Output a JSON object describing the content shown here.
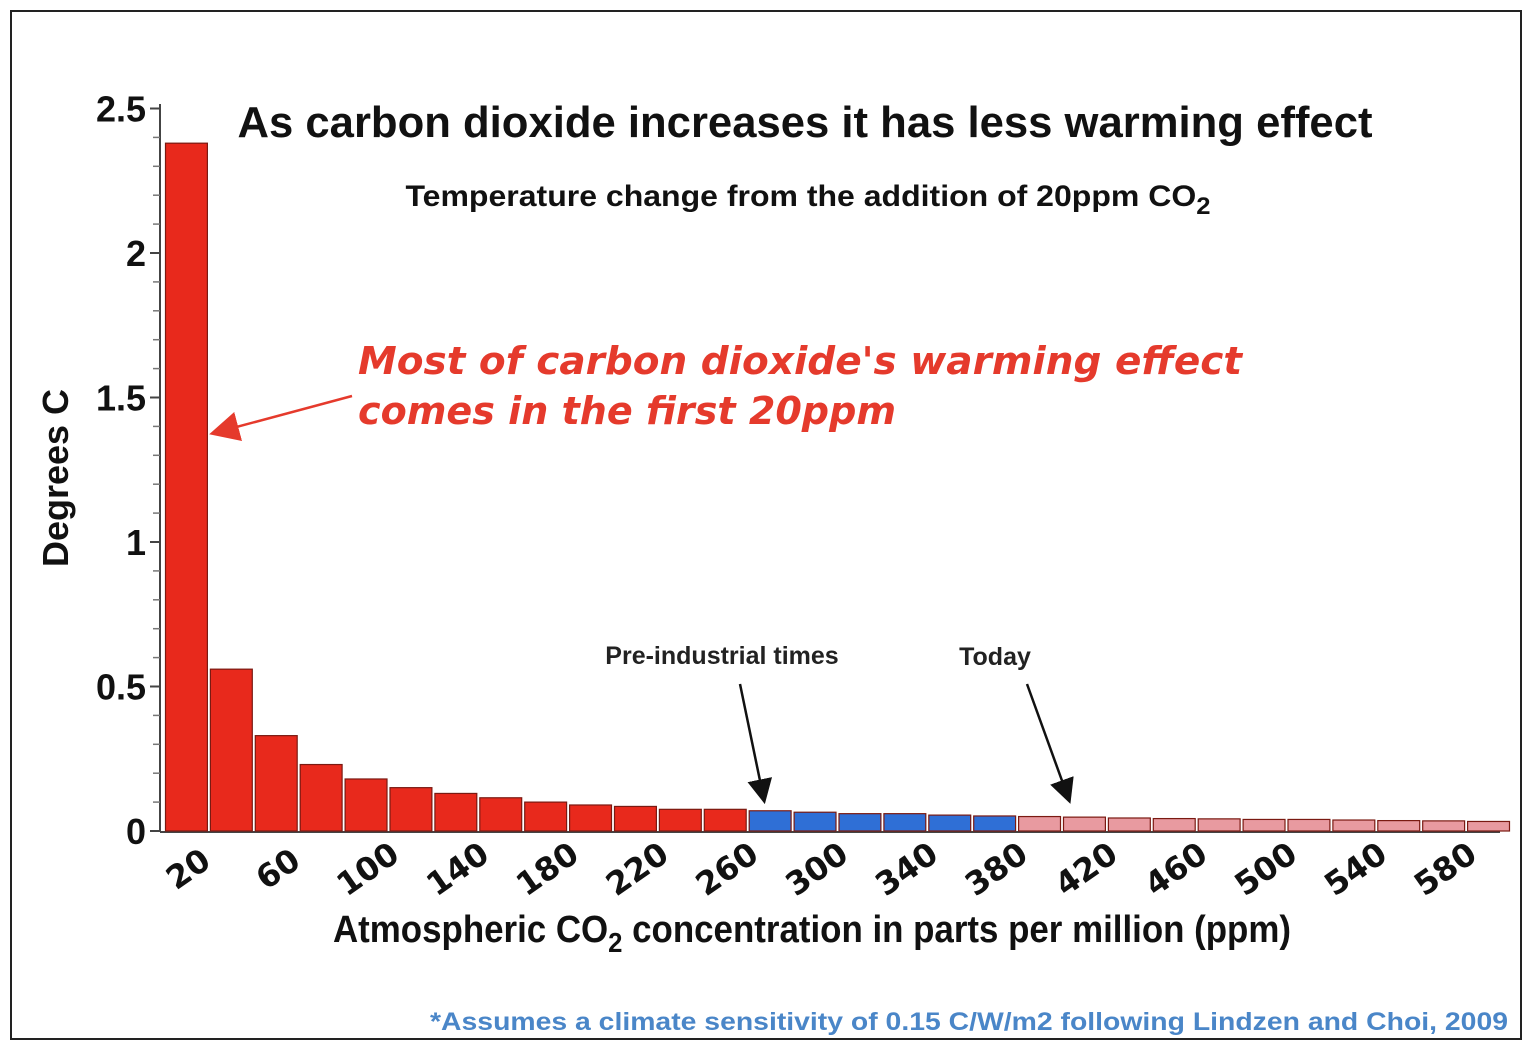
{
  "chart_data": {
    "type": "bar",
    "title": "As carbon dioxide increases it has less warming effect",
    "subtitle": {
      "text": "Temperature change from the addition of 20ppm CO",
      "sub": "2"
    },
    "ylabel": "Degrees C",
    "xlabel": {
      "before": "Atmospheric CO",
      "sub": "2",
      "after": " concentration in parts per million (ppm)"
    },
    "ylim": [
      0,
      2.5
    ],
    "yticks": [
      "0",
      "0.5",
      "1",
      "1.5",
      "2",
      "2.5"
    ],
    "yticks_values": [
      0,
      0.5,
      1,
      1.5,
      2,
      2.5
    ],
    "x_tick_labels": [
      "20",
      "60",
      "100",
      "140",
      "180",
      "220",
      "260",
      "300",
      "340",
      "380",
      "420",
      "460",
      "500",
      "540",
      "580"
    ],
    "categories": [
      20,
      40,
      60,
      80,
      100,
      120,
      140,
      160,
      180,
      200,
      220,
      240,
      260,
      280,
      300,
      320,
      340,
      360,
      380,
      400,
      420,
      440,
      460,
      480,
      500,
      520,
      540,
      560,
      580,
      600
    ],
    "values": [
      2.38,
      0.56,
      0.33,
      0.23,
      0.18,
      0.15,
      0.13,
      0.115,
      0.1,
      0.09,
      0.085,
      0.075,
      0.075,
      0.07,
      0.065,
      0.06,
      0.06,
      0.055,
      0.052,
      0.05,
      0.048,
      0.045,
      0.043,
      0.042,
      0.04,
      0.04,
      0.038,
      0.036,
      0.035,
      0.033
    ],
    "bar_colors": [
      "#e8291c",
      "#e8291c",
      "#e8291c",
      "#e8291c",
      "#e8291c",
      "#e8291c",
      "#e8291c",
      "#e8291c",
      "#e8291c",
      "#e8291c",
      "#e8291c",
      "#e8291c",
      "#e8291c",
      "#2f6fd6",
      "#2f6fd6",
      "#2f6fd6",
      "#2f6fd6",
      "#2f6fd6",
      "#2f6fd6",
      "#e89aa0",
      "#e89aa0",
      "#e89aa0",
      "#e89aa0",
      "#e89aa0",
      "#e89aa0",
      "#e89aa0",
      "#e89aa0",
      "#e89aa0",
      "#e89aa0",
      "#e89aa0"
    ],
    "grid": false,
    "annotations": {
      "main_line1": "Most of carbon dioxide's warming effect",
      "main_line2": "comes in the first 20ppm",
      "preindustrial": "Pre-industrial times",
      "today": "Today"
    },
    "footnote": "*Assumes a climate sensitivity of 0.15 C/W/m2 following Lindzen and Choi, 2009"
  },
  "colors": {
    "red": "#e8291c",
    "blue": "#2f6fd6",
    "pink": "#e89aa0",
    "annotation_red": "#e53a2c",
    "footnote_blue": "#4a86c8"
  }
}
